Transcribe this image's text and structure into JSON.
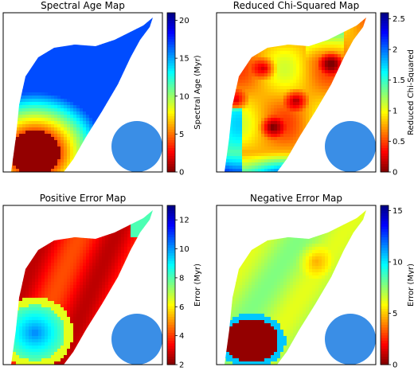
{
  "chart_data": [
    {
      "type": "heatmap",
      "title": "Spectral Age Map",
      "colorbar_label": "Spectral Age (Myr)",
      "colorbar_ticks": [
        0,
        5,
        10,
        15,
        20
      ],
      "colorbar_range": [
        0,
        21
      ],
      "colorbar_ticks_text": [
        "0",
        "5",
        "10",
        "15",
        "20"
      ],
      "colormap": "jet_r",
      "field": "age",
      "beam_color": "#3a8ee6"
    },
    {
      "type": "heatmap",
      "title": "Reduced Chi-Squared Map",
      "colorbar_label": "Reduced Chi-Squared",
      "colorbar_ticks": [
        0,
        0.5,
        1,
        1.5,
        2,
        2.5
      ],
      "colorbar_range": [
        0,
        2.6
      ],
      "colorbar_ticks_text": [
        "0",
        "0.5",
        "1",
        "1.5",
        "2",
        "2.5"
      ],
      "colormap": "jet_r",
      "field": "chi",
      "beam_color": "#3a8ee6"
    },
    {
      "type": "heatmap",
      "title": "Positive Error Map",
      "colorbar_label": "Error (Myr)",
      "colorbar_ticks": [
        2,
        4,
        6,
        8,
        10,
        12
      ],
      "colorbar_range": [
        2,
        13
      ],
      "colorbar_ticks_text": [
        "2",
        "4",
        "6",
        "8",
        "10",
        "12"
      ],
      "colormap": "jet_r",
      "field": "pos",
      "beam_color": "#3a8ee6"
    },
    {
      "type": "heatmap",
      "title": "Negative Error Map",
      "colorbar_label": "Error (Myr)",
      "colorbar_ticks": [
        0,
        5,
        10,
        15
      ],
      "colorbar_range": [
        0,
        15.5
      ],
      "colorbar_ticks_text": [
        "0",
        "5",
        "10",
        "15"
      ],
      "colormap": "jet_r",
      "field": "neg",
      "beam_color": "#3a8ee6"
    }
  ]
}
